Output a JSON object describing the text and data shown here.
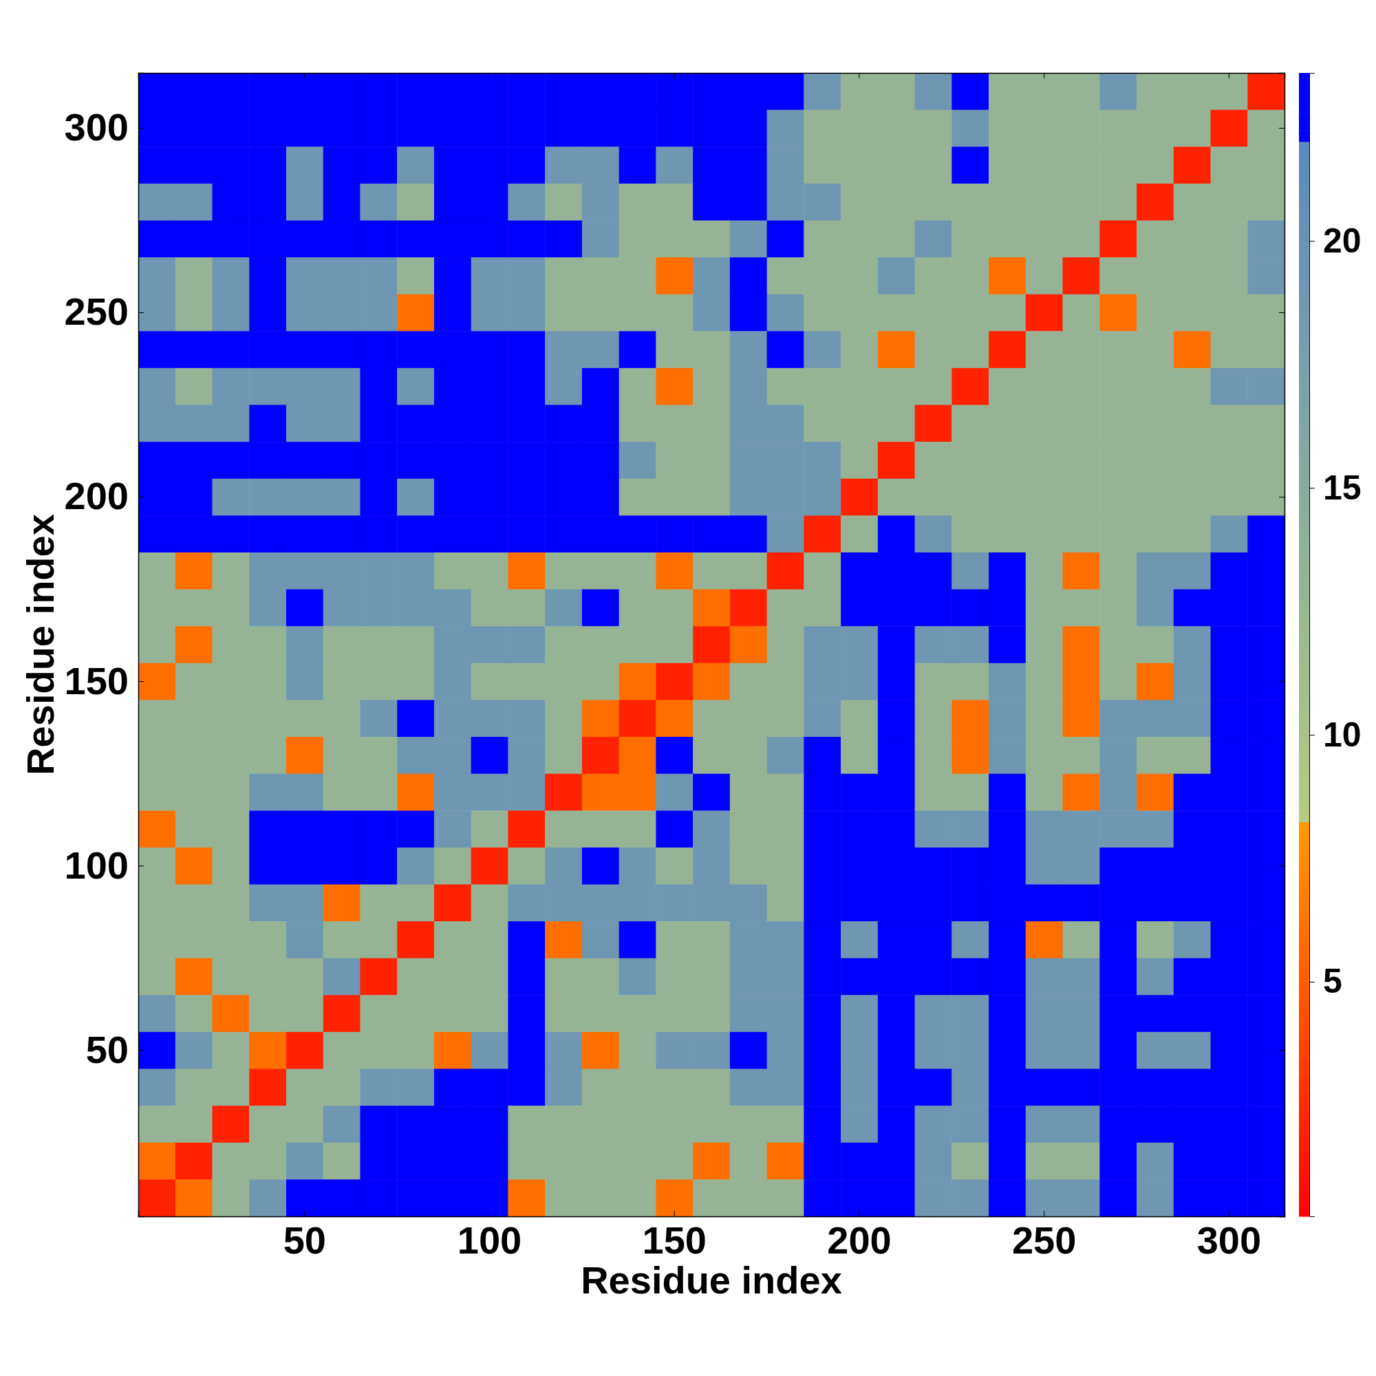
{
  "chart_data": {
    "type": "heatmap",
    "xlabel": "Residue index",
    "ylabel": "Residue index",
    "categories": [
      null,
      null,
      null,
      null,
      "50",
      null,
      null,
      null,
      null,
      "100",
      null,
      null,
      null,
      null,
      "150",
      null,
      null,
      null,
      null,
      "200",
      null,
      null,
      null,
      null,
      "250",
      null,
      null,
      null,
      null,
      "300",
      null
    ],
    "y_categories": [
      null,
      "300",
      null,
      null,
      null,
      null,
      "250",
      null,
      null,
      null,
      null,
      "200",
      null,
      null,
      null,
      null,
      "150",
      null,
      null,
      null,
      null,
      "100",
      null,
      null,
      null,
      null,
      "50",
      null,
      null,
      null,
      null
    ],
    "clim": [
      0.25,
      23.4
    ],
    "cticks": [
      5,
      10,
      15,
      20
    ],
    "cells": [
      [
        23,
        23,
        23,
        23,
        23,
        23,
        23,
        23,
        23,
        23,
        23,
        23,
        23,
        23,
        23,
        23,
        23,
        23,
        19,
        13,
        13,
        19,
        23,
        13,
        13,
        13,
        19,
        13,
        13,
        13,
        2
      ],
      [
        23,
        23,
        23,
        23,
        23,
        23,
        23,
        23,
        23,
        23,
        23,
        23,
        23,
        23,
        23,
        23,
        23,
        19,
        13,
        13,
        13,
        13,
        19,
        13,
        13,
        13,
        13,
        13,
        13,
        2,
        13
      ],
      [
        23,
        23,
        23,
        23,
        19,
        23,
        23,
        19,
        23,
        23,
        23,
        19,
        19,
        23,
        19,
        23,
        23,
        19,
        13,
        13,
        13,
        13,
        23,
        13,
        13,
        13,
        13,
        13,
        2,
        13,
        13
      ],
      [
        19,
        19,
        23,
        23,
        19,
        23,
        19,
        13,
        23,
        23,
        19,
        13,
        19,
        13,
        13,
        23,
        23,
        19,
        19,
        13,
        13,
        13,
        13,
        13,
        13,
        13,
        13,
        2,
        13,
        13,
        13
      ],
      [
        23,
        23,
        23,
        23,
        23,
        23,
        23,
        23,
        23,
        23,
        23,
        23,
        19,
        13,
        13,
        13,
        19,
        23,
        13,
        13,
        13,
        19,
        13,
        13,
        13,
        13,
        2,
        13,
        13,
        13,
        19
      ],
      [
        19,
        13,
        19,
        23,
        19,
        19,
        19,
        13,
        23,
        19,
        19,
        13,
        13,
        13,
        6,
        19,
        23,
        13,
        13,
        13,
        19,
        13,
        13,
        6,
        13,
        2,
        13,
        13,
        13,
        13,
        19
      ],
      [
        19,
        13,
        19,
        23,
        19,
        19,
        19,
        6,
        23,
        19,
        19,
        13,
        13,
        13,
        13,
        19,
        23,
        19,
        13,
        13,
        13,
        13,
        13,
        13,
        2,
        13,
        6,
        13,
        13,
        13,
        13
      ],
      [
        23,
        23,
        23,
        23,
        23,
        23,
        23,
        23,
        23,
        23,
        23,
        19,
        19,
        23,
        13,
        13,
        19,
        23,
        19,
        13,
        6,
        13,
        13,
        2,
        13,
        13,
        13,
        13,
        6,
        13,
        13
      ],
      [
        19,
        13,
        19,
        19,
        19,
        19,
        23,
        19,
        23,
        23,
        23,
        19,
        23,
        13,
        6,
        13,
        19,
        13,
        13,
        13,
        13,
        13,
        2,
        13,
        13,
        13,
        13,
        13,
        13,
        19,
        19
      ],
      [
        19,
        19,
        19,
        23,
        19,
        19,
        23,
        23,
        23,
        23,
        23,
        23,
        23,
        13,
        13,
        13,
        19,
        19,
        13,
        13,
        13,
        2,
        13,
        13,
        13,
        13,
        13,
        13,
        13,
        13,
        13
      ],
      [
        23,
        23,
        23,
        23,
        23,
        23,
        23,
        23,
        23,
        23,
        23,
        23,
        23,
        19,
        13,
        13,
        19,
        19,
        19,
        13,
        2,
        13,
        13,
        13,
        13,
        13,
        13,
        13,
        13,
        13,
        13
      ],
      [
        23,
        23,
        19,
        19,
        19,
        19,
        23,
        19,
        23,
        23,
        23,
        23,
        23,
        13,
        13,
        13,
        19,
        19,
        19,
        2,
        13,
        13,
        13,
        13,
        13,
        13,
        13,
        13,
        13,
        13,
        13
      ],
      [
        23,
        23,
        23,
        23,
        23,
        23,
        23,
        23,
        23,
        23,
        23,
        23,
        23,
        23,
        23,
        23,
        23,
        19,
        2,
        13,
        23,
        19,
        13,
        13,
        13,
        13,
        13,
        13,
        13,
        19,
        23
      ],
      [
        13,
        6,
        13,
        19,
        19,
        19,
        19,
        19,
        13,
        13,
        6,
        13,
        13,
        13,
        6,
        13,
        13,
        2,
        13,
        23,
        23,
        23,
        19,
        23,
        13,
        6,
        13,
        19,
        19,
        23,
        23
      ],
      [
        13,
        13,
        13,
        19,
        23,
        19,
        19,
        19,
        19,
        13,
        13,
        19,
        23,
        13,
        13,
        6,
        2,
        13,
        13,
        23,
        23,
        23,
        23,
        23,
        13,
        13,
        13,
        19,
        23,
        23,
        23
      ],
      [
        13,
        6,
        13,
        13,
        19,
        13,
        13,
        13,
        19,
        19,
        19,
        13,
        13,
        13,
        13,
        2,
        6,
        13,
        19,
        19,
        23,
        19,
        19,
        23,
        13,
        6,
        13,
        13,
        19,
        23,
        23
      ],
      [
        6,
        13,
        13,
        13,
        19,
        13,
        13,
        13,
        19,
        13,
        13,
        13,
        13,
        6,
        2,
        6,
        13,
        13,
        19,
        19,
        23,
        13,
        13,
        19,
        13,
        6,
        13,
        6,
        19,
        23,
        23
      ],
      [
        13,
        13,
        13,
        13,
        13,
        13,
        19,
        23,
        19,
        19,
        19,
        13,
        6,
        2,
        6,
        13,
        13,
        13,
        19,
        13,
        23,
        13,
        6,
        19,
        13,
        6,
        19,
        19,
        19,
        23,
        23
      ],
      [
        13,
        13,
        13,
        13,
        6,
        13,
        13,
        19,
        19,
        23,
        19,
        13,
        2,
        6,
        23,
        13,
        13,
        19,
        23,
        13,
        23,
        13,
        6,
        19,
        13,
        13,
        19,
        13,
        13,
        23,
        23
      ],
      [
        13,
        13,
        13,
        19,
        19,
        13,
        13,
        6,
        19,
        19,
        19,
        2,
        6,
        6,
        19,
        23,
        13,
        13,
        23,
        23,
        23,
        13,
        13,
        23,
        13,
        6,
        19,
        6,
        23,
        23,
        23
      ],
      [
        6,
        13,
        13,
        23,
        23,
        23,
        23,
        23,
        19,
        13,
        2,
        13,
        13,
        13,
        23,
        19,
        13,
        13,
        23,
        23,
        23,
        19,
        19,
        23,
        19,
        19,
        19,
        19,
        23,
        23,
        23
      ],
      [
        13,
        6,
        13,
        23,
        23,
        23,
        23,
        19,
        13,
        2,
        13,
        19,
        23,
        19,
        13,
        19,
        13,
        13,
        23,
        23,
        23,
        23,
        23,
        23,
        19,
        19,
        23,
        23,
        23,
        23,
        23
      ],
      [
        13,
        13,
        13,
        19,
        19,
        6,
        13,
        13,
        2,
        13,
        19,
        19,
        19,
        19,
        19,
        19,
        19,
        13,
        23,
        23,
        23,
        23,
        23,
        23,
        23,
        23,
        23,
        23,
        23,
        23,
        23
      ],
      [
        13,
        13,
        13,
        13,
        19,
        13,
        13,
        2,
        13,
        13,
        23,
        6,
        19,
        23,
        13,
        13,
        19,
        19,
        23,
        19,
        23,
        23,
        19,
        23,
        6,
        13,
        23,
        13,
        19,
        23,
        23
      ],
      [
        13,
        6,
        13,
        13,
        13,
        19,
        2,
        13,
        13,
        13,
        23,
        13,
        13,
        19,
        13,
        13,
        19,
        19,
        23,
        23,
        23,
        23,
        23,
        23,
        19,
        19,
        23,
        19,
        23,
        23,
        23
      ],
      [
        19,
        13,
        6,
        13,
        13,
        2,
        13,
        13,
        13,
        13,
        23,
        13,
        13,
        13,
        13,
        13,
        19,
        19,
        23,
        19,
        23,
        19,
        19,
        23,
        19,
        19,
        23,
        23,
        23,
        23,
        23
      ],
      [
        23,
        19,
        13,
        6,
        2,
        13,
        13,
        13,
        6,
        19,
        23,
        19,
        6,
        13,
        19,
        19,
        23,
        19,
        23,
        19,
        23,
        19,
        19,
        23,
        19,
        19,
        23,
        19,
        19,
        23,
        23
      ],
      [
        19,
        13,
        13,
        2,
        13,
        13,
        19,
        19,
        23,
        23,
        23,
        19,
        13,
        13,
        13,
        13,
        19,
        19,
        23,
        19,
        23,
        23,
        19,
        23,
        23,
        23,
        23,
        23,
        23,
        23,
        23
      ],
      [
        13,
        13,
        2,
        13,
        13,
        19,
        23,
        23,
        23,
        23,
        13,
        13,
        13,
        13,
        13,
        13,
        13,
        13,
        23,
        19,
        23,
        19,
        19,
        23,
        19,
        19,
        23,
        23,
        23,
        23,
        23
      ],
      [
        6,
        2,
        13,
        13,
        19,
        13,
        23,
        23,
        23,
        23,
        13,
        13,
        13,
        13,
        13,
        6,
        13,
        6,
        23,
        23,
        23,
        19,
        13,
        23,
        13,
        13,
        23,
        19,
        23,
        23,
        23
      ],
      [
        2,
        6,
        13,
        19,
        23,
        23,
        23,
        23,
        23,
        23,
        6,
        13,
        13,
        13,
        6,
        13,
        13,
        13,
        23,
        23,
        23,
        19,
        19,
        23,
        19,
        19,
        23,
        19,
        23,
        23,
        23
      ]
    ]
  }
}
